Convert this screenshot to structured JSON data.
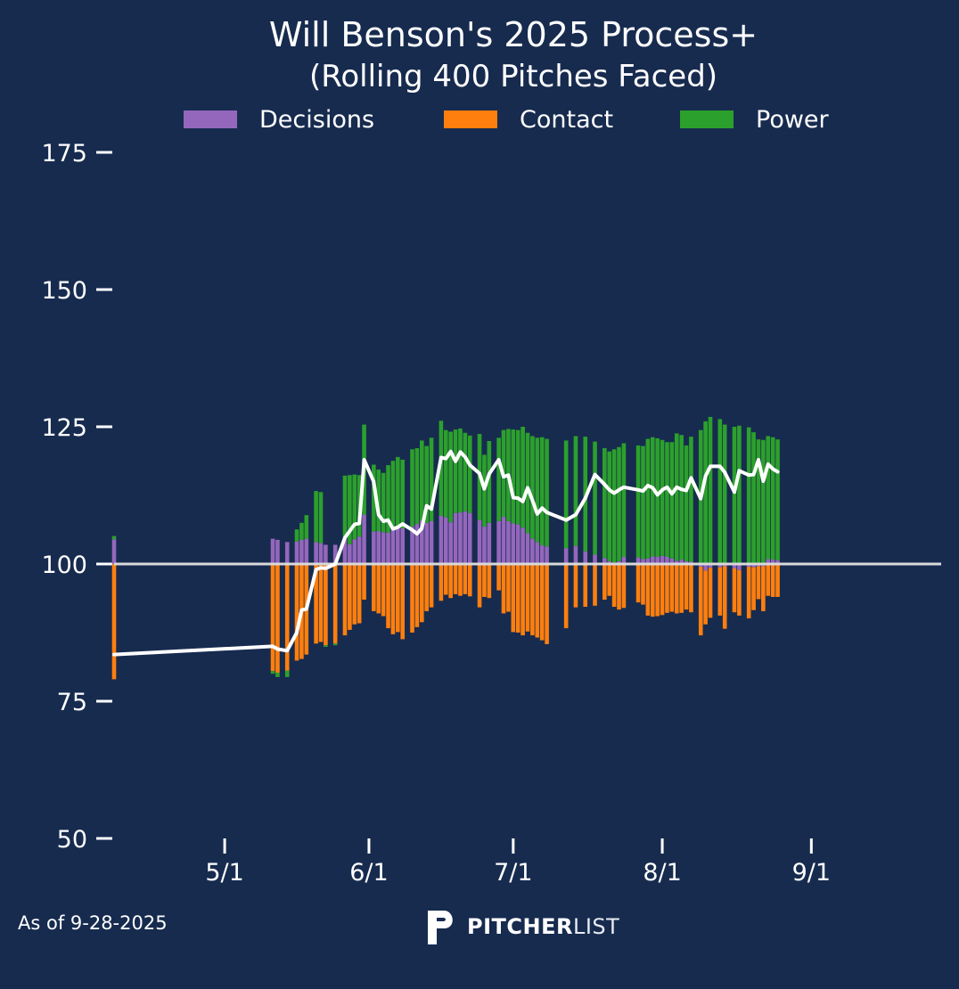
{
  "colors": {
    "background": "#172b4f",
    "decisions": "#9467bd",
    "contact": "#ff7f0e",
    "power": "#2ca02c",
    "line": "#ffffff",
    "baseline": "#d9d9d9"
  },
  "footer": {
    "as_of": "As of 9-28-2025"
  },
  "brand": {
    "name_strong": "PITCHER",
    "name_light": "LIST"
  },
  "chart_data": {
    "type": "bar",
    "title": "Will Benson's 2025 Process+",
    "subtitle": "(Rolling 400 Pitches Faced)",
    "xlabel": "",
    "ylabel": "",
    "ylim": [
      50,
      175
    ],
    "yticks": [
      50,
      75,
      100,
      125,
      150,
      175
    ],
    "xticks": [
      {
        "day": 31,
        "label": "5/1"
      },
      {
        "day": 61,
        "label": "6/1"
      },
      {
        "day": 91,
        "label": "7/1"
      },
      {
        "day": 122,
        "label": "8/1"
      },
      {
        "day": 153,
        "label": "9/1"
      }
    ],
    "baseline": 100,
    "x_range_days": [
      8,
      180
    ],
    "x_unit": "days since April 1, 2025",
    "legend": [
      "Decisions",
      "Contact",
      "Power"
    ],
    "legend_position": "top-center",
    "series": [
      {
        "name": "Decisions",
        "values": [
          104.5,
          104.6,
          104.4,
          104.0,
          104.1,
          104.4,
          104.6,
          104.0,
          103.8,
          103.5,
          103.5,
          104.9,
          103.6,
          104.5,
          105.0,
          109.0,
          105.9,
          106.0,
          105.8,
          105.7,
          106.3,
          107.0,
          106.5,
          106.8,
          107.3,
          108.0,
          107.5,
          107.8,
          108.8,
          108.5,
          107.6,
          109.3,
          109.4,
          109.6,
          109.3,
          108.0,
          106.8,
          107.5,
          107.8,
          108.6,
          107.8,
          107.4,
          107.2,
          106.6,
          105.6,
          104.6,
          104.0,
          103.4,
          103.2,
          102.9,
          103.3,
          102.3,
          101.7,
          101.1,
          100.5,
          100.3,
          100.5,
          101.3,
          101.2,
          100.9,
          101.0,
          101.4,
          101.3,
          101.5,
          101.3,
          101.0,
          100.6,
          100.8,
          100.5,
          100.4,
          99.5,
          98.8,
          99.3,
          99.4,
          99.6,
          99.2,
          98.9,
          99.5,
          99.4,
          99.6,
          99.6,
          100.9,
          100.8,
          100.7
        ]
      },
      {
        "name": "Contact",
        "values": [
          -21.0,
          -19.5,
          -19.8,
          -19.4,
          -17.6,
          -17.3,
          -16.5,
          -14.5,
          -14.2,
          -14.8,
          -14.5,
          -13.0,
          -12.0,
          -11.0,
          -10.8,
          -6.5,
          -8.6,
          -9.0,
          -9.5,
          -11.7,
          -12.8,
          -12.4,
          -13.7,
          -12.5,
          -11.5,
          -10.6,
          -8.6,
          -7.9,
          -6.7,
          -5.6,
          -6.2,
          -5.5,
          -5.8,
          -5.5,
          -5.9,
          -7.9,
          -6.0,
          -6.2,
          -4.8,
          -9.0,
          -8.7,
          -12.4,
          -12.5,
          -13.0,
          -12.3,
          -13.0,
          -13.4,
          -13.9,
          -14.6,
          -11.7,
          -7.9,
          -7.8,
          -7.6,
          -6.5,
          -5.8,
          -7.8,
          -8.3,
          -8.0,
          -7.0,
          -7.4,
          -9.4,
          -9.6,
          -9.5,
          -9.3,
          -8.9,
          -8.7,
          -9.0,
          -8.9,
          -8.3,
          -8.8,
          -12.5,
          -9.8,
          -9.1,
          -8.8,
          -11.4,
          -8.0,
          -8.3,
          -9.4,
          -7.8,
          -6.0,
          -8.2,
          -5.8,
          -6.0,
          -6.0
        ]
      },
      {
        "name": "Power",
        "values": [
          0.6,
          -0.5,
          -0.8,
          -1.2,
          2.2,
          3.1,
          4.3,
          9.3,
          9.3,
          -0.3,
          -0.3,
          11.2,
          12.6,
          11.8,
          11.2,
          16.4,
          12.2,
          11.2,
          10.8,
          12.3,
          12.5,
          12.5,
          12.5,
          14.1,
          13.8,
          14.5,
          14.0,
          15.2,
          17.3,
          15.9,
          16.5,
          15.2,
          15.3,
          14.3,
          14.1,
          15.7,
          13.1,
          14.9,
          15.2,
          15.8,
          16.8,
          17.1,
          17.2,
          18.4,
          18.3,
          18.7,
          19.0,
          19.7,
          19.6,
          19.6,
          20.0,
          20.9,
          20.6,
          20.0,
          20.0,
          20.6,
          20.8,
          20.7,
          20.4,
          20.6,
          21.8,
          21.7,
          21.6,
          21.1,
          20.9,
          21.2,
          23.2,
          22.7,
          21.1,
          22.8,
          24.4,
          26.0,
          26.8,
          26.4,
          25.4,
          25.0,
          25.2,
          24.9,
          24.0,
          22.7,
          22.6,
          22.4,
          22.3,
          22.0
        ]
      },
      {
        "name": "Process+ (rolling)",
        "values": [
          83.5,
          85.0,
          84.5,
          84.2,
          87.5,
          91.6,
          91.8,
          99.0,
          99.3,
          99.2,
          100.0,
          104.8,
          106.0,
          107.2,
          107.4,
          119.0,
          115.0,
          109.0,
          107.8,
          108.0,
          106.4,
          106.7,
          107.3,
          106.2,
          105.5,
          106.5,
          110.6,
          110.0,
          119.4,
          119.2,
          120.5,
          118.7,
          120.4,
          119.5,
          118.0,
          116.5,
          113.7,
          116.4,
          119.0,
          115.9,
          116.2,
          112.1,
          112.0,
          111.4,
          113.9,
          111.6,
          109.1,
          110.2,
          109.4,
          108.0,
          109.0,
          112.0,
          116.3,
          114.5,
          113.5,
          112.9,
          113.5,
          114.0,
          113.5,
          113.3,
          114.3,
          113.9,
          112.6,
          113.5,
          114.0,
          112.8,
          114.0,
          113.6,
          113.4,
          115.7,
          111.9,
          116.0,
          117.8,
          117.8,
          116.7,
          113.1,
          117.0,
          116.2,
          116.3,
          119.0,
          115.1,
          118.2,
          117.3,
          116.8
        ]
      }
    ],
    "x": [
      8,
      41,
      42,
      44,
      46,
      47,
      48,
      50,
      51,
      52,
      54,
      56,
      57,
      58,
      59,
      60,
      62,
      63,
      64,
      65,
      66,
      67,
      68,
      70,
      71,
      72,
      73,
      74,
      76,
      77,
      78,
      79,
      80,
      81,
      82,
      84,
      85,
      86,
      88,
      89,
      90,
      91,
      92,
      93,
      94,
      95,
      96,
      97,
      98,
      102,
      104,
      106,
      108,
      110,
      111,
      112,
      113,
      114,
      117,
      118,
      119,
      120,
      121,
      122,
      123,
      124,
      125,
      126,
      127,
      128,
      130,
      131,
      132,
      134,
      135,
      137,
      138,
      140,
      141,
      142,
      143,
      144,
      145,
      146
    ]
  }
}
